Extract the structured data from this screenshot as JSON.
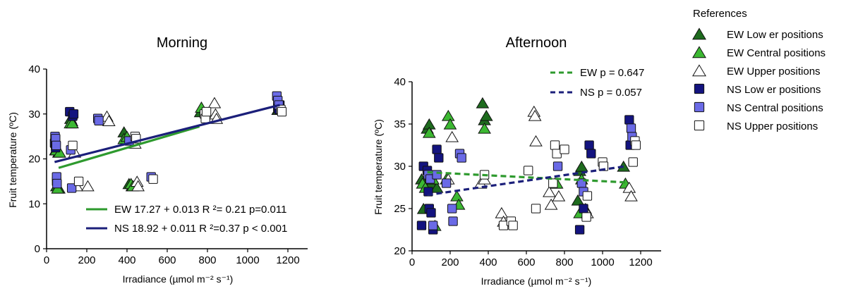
{
  "references_title": "References",
  "references": [
    {
      "label": "EW Low er positions",
      "marker": "triangle",
      "color": "#1e6b1e"
    },
    {
      "label": "EW Central positions",
      "marker": "triangle",
      "color": "#3cb832"
    },
    {
      "label": "EW Upper positions",
      "marker": "triangle",
      "color": "#ffffff"
    },
    {
      "label": "NS Low er positions",
      "marker": "square",
      "color": "#13137f"
    },
    {
      "label": "NS Central positions",
      "marker": "square",
      "color": "#6a6ae6"
    },
    {
      "label": "NS Upper positions",
      "marker": "square",
      "color": "#ffffff"
    }
  ],
  "chart_data": [
    {
      "type": "scatter",
      "title": "Morning",
      "xlabel": "Irradiance (µmol m⁻² s⁻¹)",
      "ylabel": "Fruit temperature (ºC)",
      "xlim": [
        0,
        1300
      ],
      "ylim": [
        0,
        40
      ],
      "xticks": [
        "0",
        "200",
        "400",
        "600",
        "800",
        "1000",
        "1200"
      ],
      "yticks": [
        "0",
        "10",
        "20",
        "30",
        "40"
      ],
      "legend": [
        {
          "label": "EW 17.27 + 0.013 R ²= 0.21 p=0.011",
          "color": "#2e9a2e",
          "style": "solid"
        },
        {
          "label": "NS 18.92 + 0.011 R ²=0.37 p < 0.001",
          "color": "#1b1f7a",
          "style": "solid"
        }
      ],
      "fit_lines": [
        {
          "name": "EW",
          "x": [
            60,
            760
          ],
          "y": [
            18.0,
            27.2
          ]
        },
        {
          "name": "NS",
          "x": [
            40,
            1160
          ],
          "y": [
            19.3,
            32.0
          ]
        }
      ],
      "series": [
        {
          "name": "EW Low er positions",
          "points": [
            [
              45,
              22
            ],
            [
              50,
              14
            ],
            [
              60,
              21.5
            ],
            [
              62,
              13.5
            ],
            [
              120,
              29
            ],
            [
              125,
              28.5
            ],
            [
              385,
              26
            ],
            [
              395,
              24.5
            ],
            [
              410,
              14.5
            ],
            [
              425,
              14
            ],
            [
              765,
              30.5
            ],
            [
              1150,
              31
            ]
          ]
        },
        {
          "name": "EW Central positions",
          "points": [
            [
              48,
              22
            ],
            [
              55,
              13.5
            ],
            [
              65,
              21.5
            ],
            [
              118,
              28
            ],
            [
              128,
              28
            ],
            [
              385,
              24.5
            ],
            [
              400,
              25
            ],
            [
              420,
              14.5
            ],
            [
              430,
              14
            ],
            [
              770,
              31.5
            ],
            [
              1155,
              31
            ]
          ]
        },
        {
          "name": "EW Upper positions",
          "points": [
            [
              140,
              21.5
            ],
            [
              150,
              14
            ],
            [
              205,
              14
            ],
            [
              300,
              29.5
            ],
            [
              310,
              28.5
            ],
            [
              440,
              23.5
            ],
            [
              450,
              15
            ],
            [
              455,
              14
            ],
            [
              835,
              32.5
            ],
            [
              840,
              30
            ],
            [
              845,
              29
            ]
          ]
        },
        {
          "name": "NS Low er positions",
          "points": [
            [
              40,
              23.5
            ],
            [
              45,
              22.5
            ],
            [
              50,
              15
            ],
            [
              115,
              30.5
            ],
            [
              130,
              29.5
            ],
            [
              135,
              30
            ],
            [
              1150,
              31.5
            ],
            [
              1155,
              31
            ],
            [
              1160,
              32
            ]
          ]
        },
        {
          "name": "NS Central positions",
          "points": [
            [
              42,
              25
            ],
            [
              45,
              24.5
            ],
            [
              48,
              23
            ],
            [
              50,
              16
            ],
            [
              52,
              14.5
            ],
            [
              120,
              22
            ],
            [
              125,
              13.5
            ],
            [
              255,
              29
            ],
            [
              260,
              28.5
            ],
            [
              410,
              24
            ],
            [
              520,
              16
            ],
            [
              1145,
              34
            ],
            [
              1150,
              33
            ],
            [
              1155,
              32
            ]
          ]
        },
        {
          "name": "NS Upper positions",
          "points": [
            [
              130,
              23
            ],
            [
              160,
              15
            ],
            [
              440,
              25
            ],
            [
              445,
              24.5
            ],
            [
              530,
              15.5
            ],
            [
              785,
              30
            ],
            [
              790,
              29
            ],
            [
              795,
              30.5
            ],
            [
              1165,
              31
            ],
            [
              1170,
              30.5
            ]
          ]
        }
      ]
    },
    {
      "type": "scatter",
      "title": "Afternoon",
      "xlabel": "Irradiance (µmol m⁻² s⁻¹)",
      "ylabel": "Fruit temperature (ºC)",
      "xlim": [
        0,
        1300
      ],
      "ylim": [
        20,
        40
      ],
      "xticks": [
        "0",
        "200",
        "400",
        "600",
        "800",
        "1000",
        "1200"
      ],
      "yticks": [
        "20",
        "25",
        "30",
        "35",
        "40"
      ],
      "legend": [
        {
          "label": "EW p = 0.647",
          "color": "#2e9a2e",
          "style": "dashed"
        },
        {
          "label": "NS p = 0.057",
          "color": "#1b1f7a",
          "style": "dashed"
        }
      ],
      "fit_lines": [
        {
          "name": "EW",
          "x": [
            80,
            1120
          ],
          "y": [
            29.3,
            28.1
          ]
        },
        {
          "name": "NS",
          "x": [
            80,
            1120
          ],
          "y": [
            26.6,
            30.0
          ]
        }
      ],
      "series": [
        {
          "name": "EW Low er positions",
          "points": [
            [
              50,
              28.5
            ],
            [
              60,
              25
            ],
            [
              80,
              34.5
            ],
            [
              90,
              35
            ],
            [
              100,
              28
            ],
            [
              130,
              27.5
            ],
            [
              370,
              37.5
            ],
            [
              380,
              35.5
            ],
            [
              390,
              36
            ],
            [
              750,
              28
            ],
            [
              870,
              26
            ],
            [
              880,
              29.5
            ],
            [
              890,
              30
            ],
            [
              910,
              25
            ],
            [
              1110,
              30
            ]
          ]
        },
        {
          "name": "EW Central positions",
          "points": [
            [
              55,
              28
            ],
            [
              70,
              27.5
            ],
            [
              90,
              34
            ],
            [
              110,
              28.5
            ],
            [
              120,
              23
            ],
            [
              180,
              28.5
            ],
            [
              190,
              36
            ],
            [
              200,
              35
            ],
            [
              235,
              26.5
            ],
            [
              245,
              25.5
            ],
            [
              380,
              34.5
            ],
            [
              760,
              28
            ],
            [
              880,
              24.5
            ],
            [
              890,
              28.5
            ],
            [
              1120,
              28
            ]
          ]
        },
        {
          "name": "EW Upper positions",
          "points": [
            [
              190,
              28.5
            ],
            [
              210,
              33.5
            ],
            [
              360,
              28
            ],
            [
              380,
              28.5
            ],
            [
              470,
              24.5
            ],
            [
              480,
              23.5
            ],
            [
              640,
              36.5
            ],
            [
              645,
              36
            ],
            [
              650,
              33
            ],
            [
              720,
              27
            ],
            [
              730,
              25.5
            ],
            [
              770,
              26.5
            ],
            [
              920,
              24.5
            ],
            [
              1140,
              27.5
            ],
            [
              1150,
              26.5
            ]
          ]
        },
        {
          "name": "NS Low er positions",
          "points": [
            [
              50,
              23
            ],
            [
              60,
              30
            ],
            [
              80,
              29.5
            ],
            [
              85,
              27
            ],
            [
              90,
              25
            ],
            [
              100,
              24.5
            ],
            [
              110,
              22.5
            ],
            [
              130,
              32
            ],
            [
              140,
              31
            ],
            [
              880,
              22.5
            ],
            [
              900,
              25
            ],
            [
              930,
              32.5
            ],
            [
              940,
              31.5
            ],
            [
              1140,
              35.5
            ],
            [
              1145,
              32.5
            ]
          ]
        },
        {
          "name": "NS Central positions",
          "points": [
            [
              85,
              29
            ],
            [
              95,
              28.5
            ],
            [
              110,
              23
            ],
            [
              130,
              29
            ],
            [
              180,
              28
            ],
            [
              210,
              25
            ],
            [
              215,
              23.5
            ],
            [
              250,
              31.5
            ],
            [
              260,
              31
            ],
            [
              765,
              30
            ],
            [
              890,
              28
            ],
            [
              900,
              27
            ],
            [
              1150,
              34.5
            ],
            [
              1155,
              33.5
            ]
          ]
        },
        {
          "name": "NS Upper positions",
          "points": [
            [
              380,
              29
            ],
            [
              480,
              23
            ],
            [
              520,
              23.5
            ],
            [
              530,
              23
            ],
            [
              610,
              29.5
            ],
            [
              650,
              25
            ],
            [
              740,
              28
            ],
            [
              750,
              32.5
            ],
            [
              760,
              31.5
            ],
            [
              800,
              32
            ],
            [
              915,
              24
            ],
            [
              920,
              26.5
            ],
            [
              1000,
              30.5
            ],
            [
              1005,
              30
            ],
            [
              1160,
              30.5
            ],
            [
              1170,
              33
            ],
            [
              1175,
              32.5
            ]
          ]
        }
      ]
    }
  ]
}
